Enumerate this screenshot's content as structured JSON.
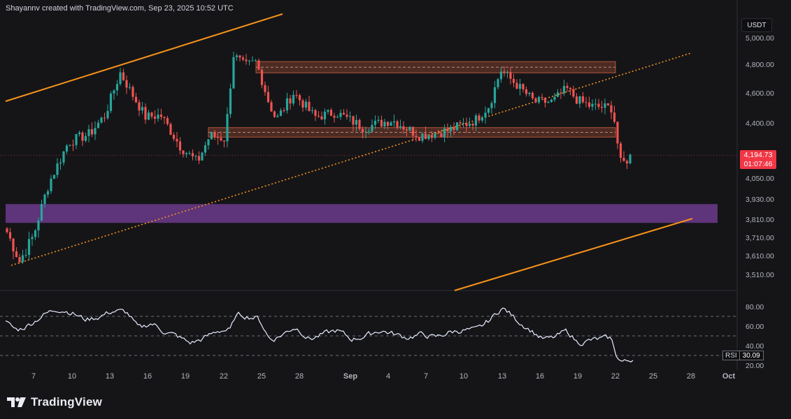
{
  "header": {
    "caption": "Shayannv created with TradingView.com, Sep 23, 2025 10:52 UTC"
  },
  "footer": {
    "brand": "TradingView",
    "logo_icon": "tradingview-logo-icon"
  },
  "currency_label": "USDT",
  "price_badge": {
    "price": "4,194.73",
    "countdown": "01:07:46",
    "color": "#f23645"
  },
  "rsi_badge": {
    "label": "RSI",
    "value": "30.09"
  },
  "colors": {
    "up": "#26a69a",
    "down": "#ef5350",
    "rsi_line": "#e8ecff",
    "channel": "#f7931a",
    "support_zone": "#6b3a8c",
    "resistance_box": "#b5553a"
  },
  "chart_data": {
    "type": "candlestick",
    "price_axis_ticks": [
      "5,000.00",
      "4,800.00",
      "4,600.00",
      "4,400.00",
      "4,050.00",
      "3,930.00",
      "3,810.00",
      "3,710.00",
      "3,610.00",
      "3,510.00"
    ],
    "rsi_axis_ticks": [
      "80.00",
      "60.00",
      "40.00",
      "20.00"
    ],
    "x_ticks": [
      "7",
      "10",
      "13",
      "16",
      "19",
      "22",
      "25",
      "28",
      "Sep",
      "4",
      "7",
      "10",
      "13",
      "16",
      "19",
      "22",
      "25",
      "28",
      "Oct"
    ],
    "last_price": 4194.73,
    "rsi_last": 30.09,
    "zones": [
      {
        "kind": "resistance_box",
        "from": 4740,
        "to": 4820
      },
      {
        "kind": "resistance_box",
        "from": 4310,
        "to": 4370
      },
      {
        "kind": "support_zone",
        "from": 3790,
        "to": 3900
      }
    ],
    "rsi_levels": [
      70,
      50,
      30
    ]
  }
}
